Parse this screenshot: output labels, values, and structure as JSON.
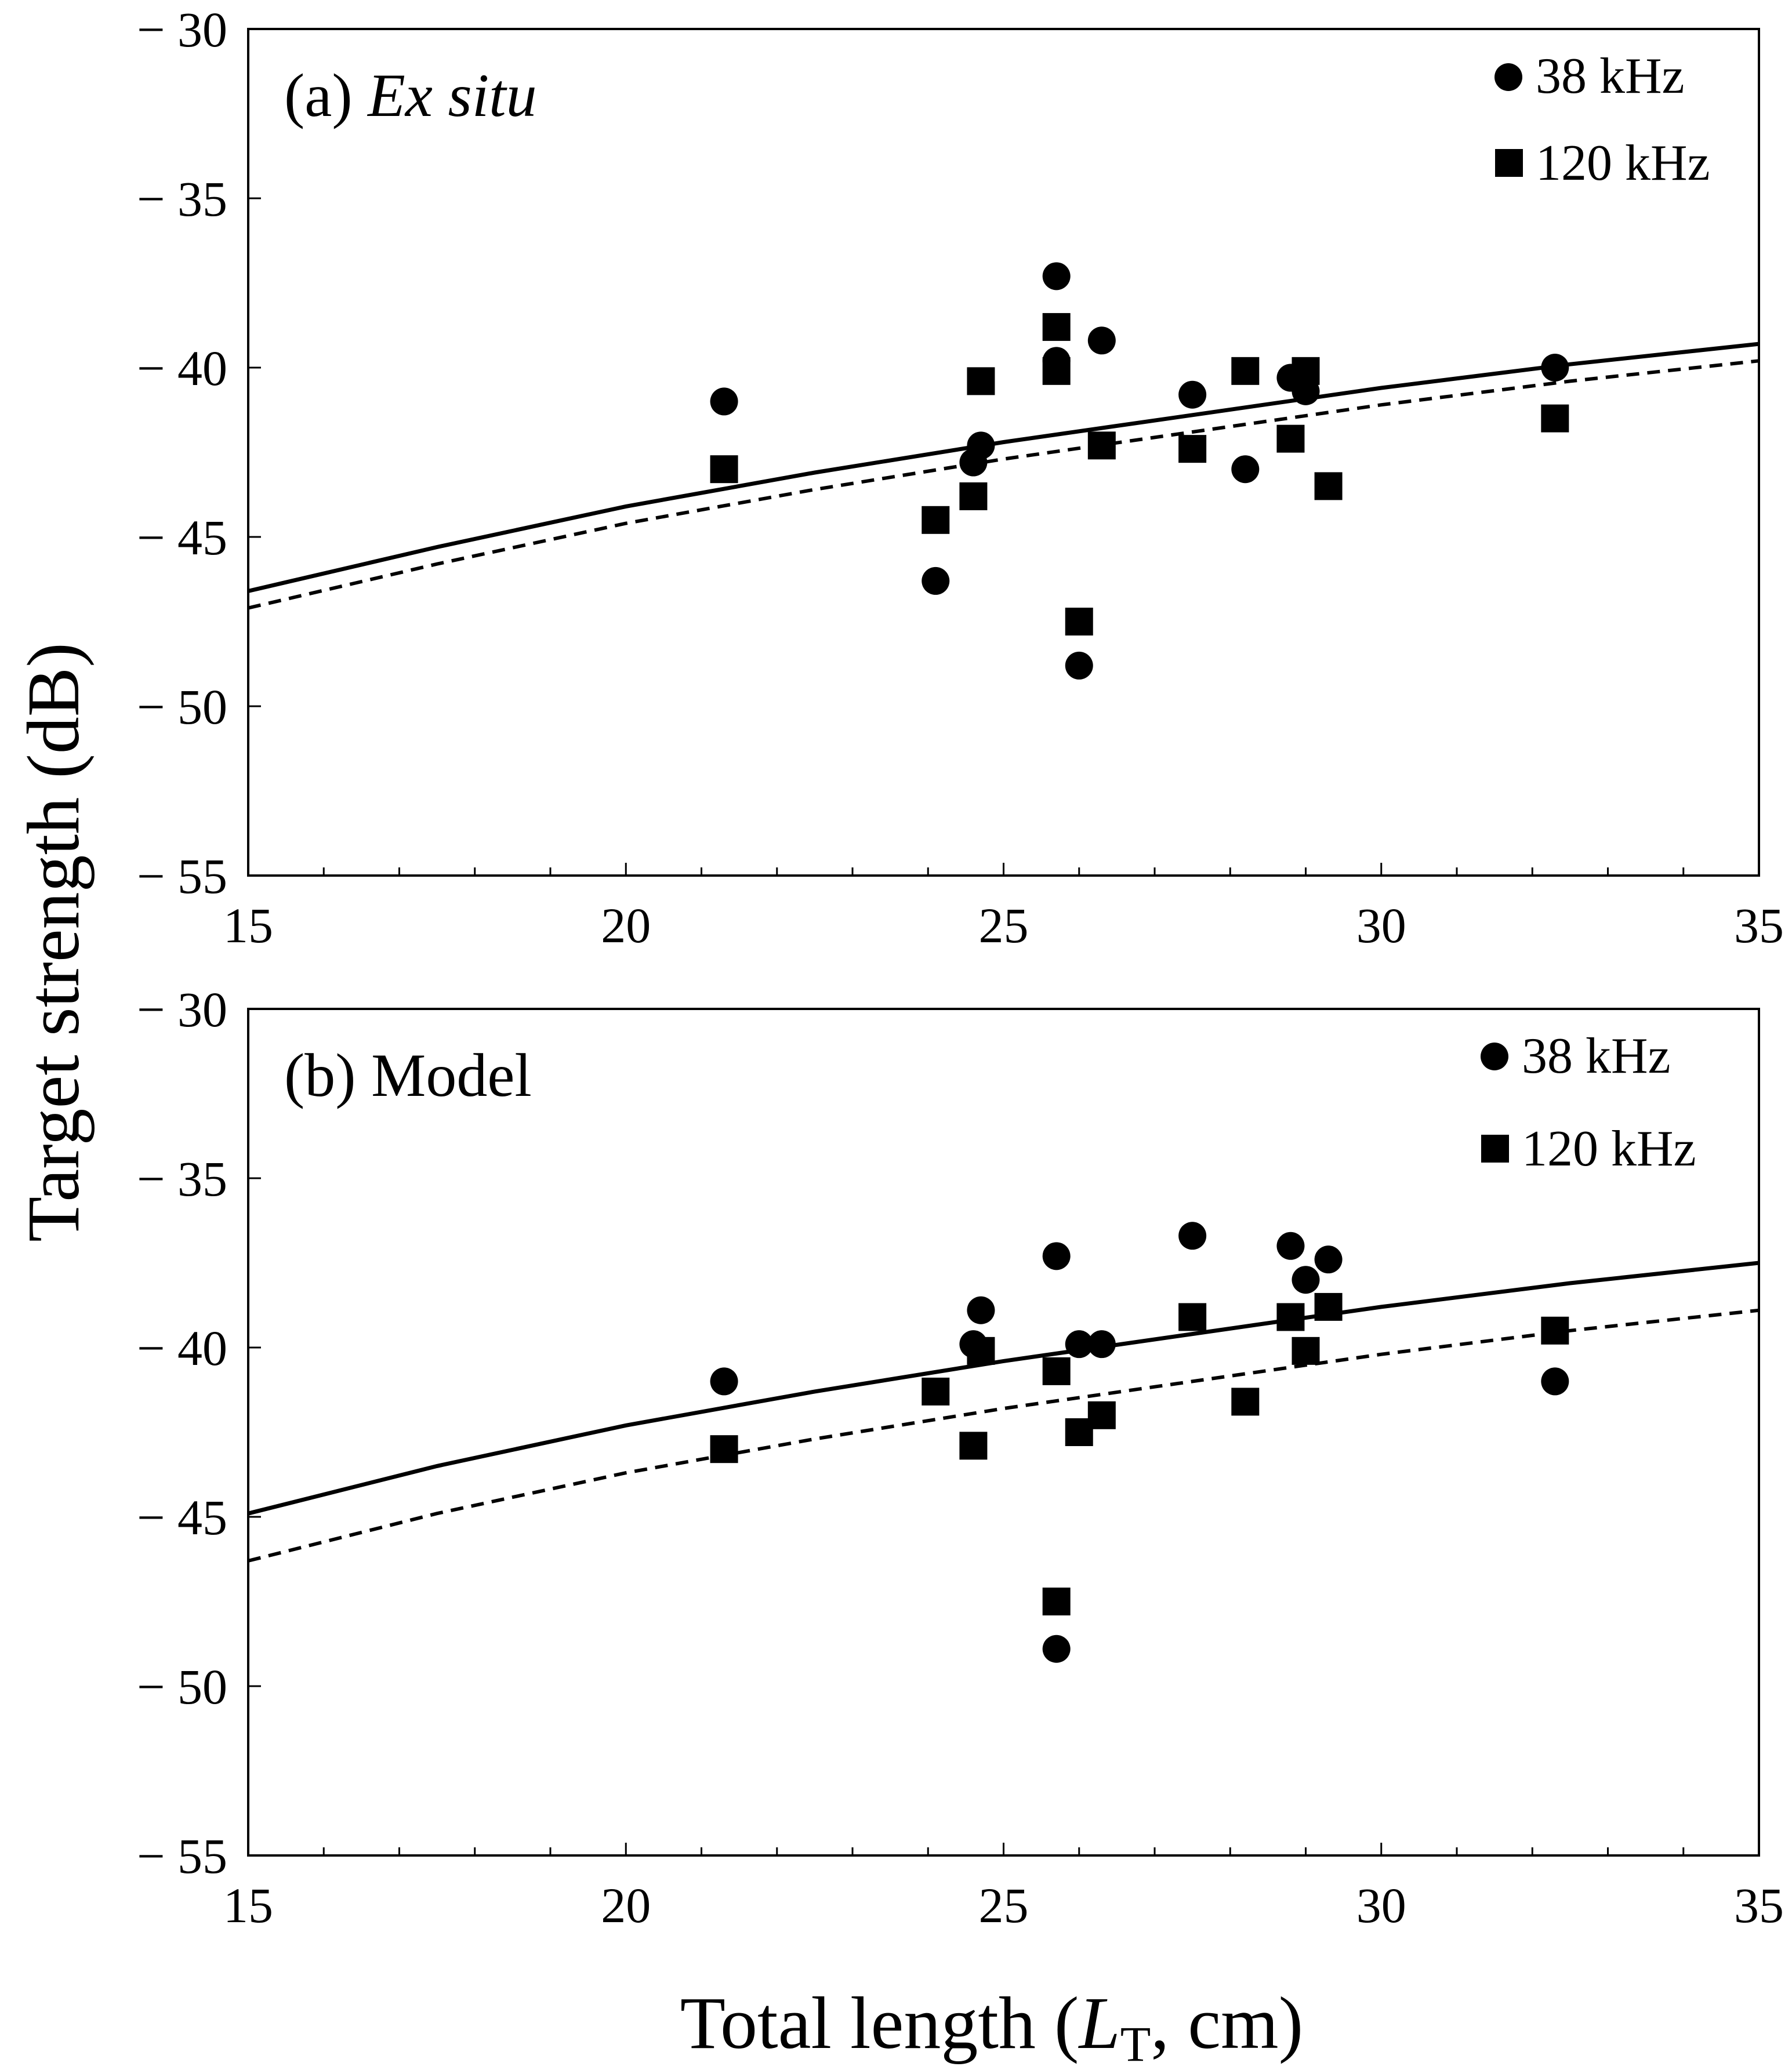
{
  "figure": {
    "ylabel": "Target strength (dB)",
    "xlabel_prefix": "Total length (",
    "xlabel_var": "L",
    "xlabel_sub": "T",
    "xlabel_suffix": ", cm)"
  },
  "chart_data": [
    {
      "type": "scatter",
      "title_prefix": "(a) ",
      "title_main": "Ex situ",
      "title_italic": true,
      "xlim": [
        15,
        35
      ],
      "ylim": [
        -55,
        -30
      ],
      "xticks": [
        15,
        20,
        25,
        30,
        35
      ],
      "yticks": [
        -30,
        -35,
        -40,
        -45,
        -50,
        -55
      ],
      "xtick_labels": [
        "15",
        "20",
        "25",
        "30",
        "35"
      ],
      "ytick_labels": [
        "− 30",
        "− 35",
        "− 40",
        "− 45",
        "− 50",
        "− 55"
      ],
      "legend_position": "top-right",
      "series": [
        {
          "name": "38 kHz",
          "marker": "circle",
          "points": [
            [
              21.3,
              -41.0
            ],
            [
              24.1,
              -46.3
            ],
            [
              24.6,
              -42.8
            ],
            [
              24.7,
              -42.3
            ],
            [
              25.7,
              -37.3
            ],
            [
              25.7,
              -39.8
            ],
            [
              26.0,
              -48.8
            ],
            [
              26.3,
              -39.2
            ],
            [
              27.5,
              -40.8
            ],
            [
              28.2,
              -43.0
            ],
            [
              28.8,
              -40.3
            ],
            [
              29.0,
              -40.7
            ],
            [
              32.3,
              -40.0
            ]
          ]
        },
        {
          "name": "120 kHz",
          "marker": "square",
          "points": [
            [
              21.3,
              -43.0
            ],
            [
              24.1,
              -44.5
            ],
            [
              24.6,
              -43.8
            ],
            [
              24.7,
              -40.4
            ],
            [
              25.7,
              -38.8
            ],
            [
              25.7,
              -40.1
            ],
            [
              26.0,
              -47.5
            ],
            [
              26.3,
              -42.3
            ],
            [
              27.5,
              -42.4
            ],
            [
              28.2,
              -40.1
            ],
            [
              28.8,
              -42.1
            ],
            [
              29.0,
              -40.1
            ],
            [
              29.3,
              -43.5
            ],
            [
              32.3,
              -41.5
            ]
          ]
        },
        {
          "name": "38 kHz fit",
          "style": "solid",
          "x": [
            15,
            17.5,
            20,
            22.5,
            25,
            27.5,
            30,
            32.5,
            35
          ],
          "y": [
            -46.6,
            -45.3,
            -44.1,
            -43.1,
            -42.2,
            -41.4,
            -40.6,
            -39.9,
            -39.3
          ]
        },
        {
          "name": "120 kHz fit",
          "style": "dashed",
          "x": [
            15,
            17.5,
            20,
            22.5,
            25,
            27.5,
            30,
            32.5,
            35
          ],
          "y": [
            -47.1,
            -45.8,
            -44.6,
            -43.6,
            -42.7,
            -41.9,
            -41.1,
            -40.4,
            -39.8
          ]
        }
      ]
    },
    {
      "type": "scatter",
      "title_prefix": "(b) ",
      "title_main": "Model",
      "title_italic": false,
      "xlim": [
        15,
        35
      ],
      "ylim": [
        -55,
        -30
      ],
      "xticks": [
        15,
        20,
        25,
        30,
        35
      ],
      "yticks": [
        -30,
        -35,
        -40,
        -45,
        -50,
        -55
      ],
      "xtick_labels": [
        "15",
        "20",
        "25",
        "30",
        "35"
      ],
      "ytick_labels": [
        "− 30",
        "− 35",
        "− 40",
        "− 45",
        "− 50",
        "− 55"
      ],
      "legend_position": "top-right",
      "series": [
        {
          "name": "38 kHz",
          "marker": "circle",
          "points": [
            [
              21.3,
              -41.0
            ],
            [
              24.6,
              -39.9
            ],
            [
              24.7,
              -38.9
            ],
            [
              25.7,
              -37.3
            ],
            [
              25.7,
              -48.9
            ],
            [
              26.0,
              -39.9
            ],
            [
              26.3,
              -39.9
            ],
            [
              27.5,
              -36.7
            ],
            [
              28.8,
              -37.0
            ],
            [
              29.0,
              -38.0
            ],
            [
              29.3,
              -37.4
            ],
            [
              32.3,
              -41.0
            ]
          ]
        },
        {
          "name": "120 kHz",
          "marker": "square",
          "points": [
            [
              21.3,
              -43.0
            ],
            [
              24.1,
              -41.3
            ],
            [
              24.6,
              -42.9
            ],
            [
              24.7,
              -40.1
            ],
            [
              25.7,
              -40.7
            ],
            [
              25.7,
              -47.5
            ],
            [
              26.0,
              -42.5
            ],
            [
              26.3,
              -42.0
            ],
            [
              27.5,
              -39.1
            ],
            [
              28.2,
              -41.6
            ],
            [
              28.8,
              -39.1
            ],
            [
              29.0,
              -40.1
            ],
            [
              29.3,
              -38.8
            ],
            [
              32.3,
              -39.5
            ]
          ]
        },
        {
          "name": "38 kHz fit",
          "style": "solid",
          "x": [
            15,
            17.5,
            20,
            22.5,
            25,
            27.5,
            30,
            32.5,
            35
          ],
          "y": [
            -44.9,
            -43.5,
            -42.3,
            -41.3,
            -40.4,
            -39.6,
            -38.8,
            -38.1,
            -37.5
          ]
        },
        {
          "name": "120 kHz fit",
          "style": "dashed",
          "x": [
            15,
            17.5,
            20,
            22.5,
            25,
            27.5,
            30,
            32.5,
            35
          ],
          "y": [
            -46.3,
            -44.9,
            -43.7,
            -42.7,
            -41.8,
            -41.0,
            -40.2,
            -39.5,
            -38.9
          ]
        }
      ]
    }
  ]
}
